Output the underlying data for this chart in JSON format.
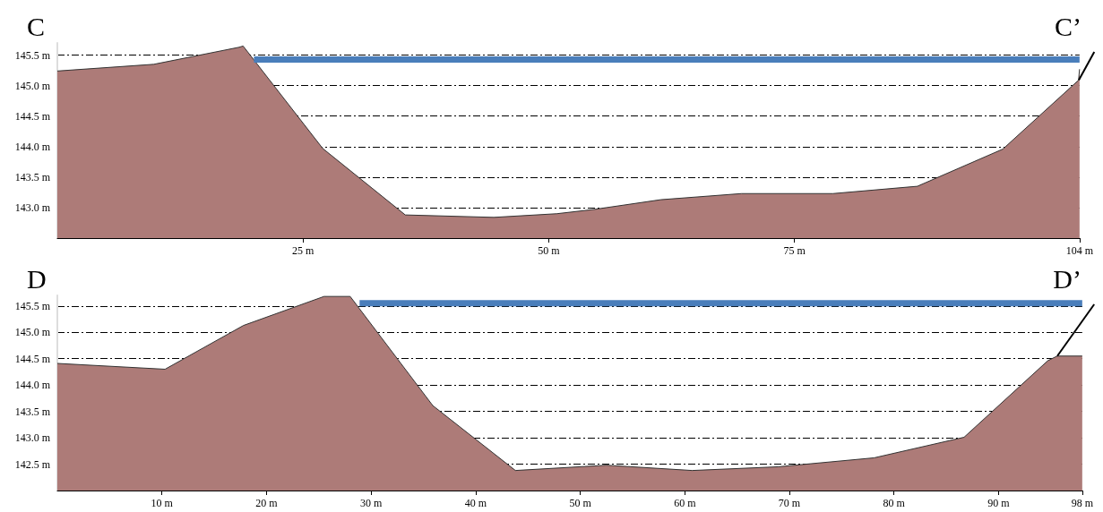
{
  "chart_data": [
    {
      "type": "area",
      "annotations": [
        "C",
        {
          "text": "C’",
          "x": 103.9,
          "y": 145.09
        }
      ],
      "xlim": [
        0,
        104
      ],
      "xticks": [
        {
          "value": 25,
          "label": "25 m"
        },
        {
          "value": 50,
          "label": "50 m"
        },
        {
          "value": 75,
          "label": "75 m"
        },
        {
          "value": 104,
          "label": "104 m"
        }
      ],
      "ylim": [
        142.5,
        145.7
      ],
      "yticks": [
        {
          "value": 143.0,
          "label": "143.0 m"
        },
        {
          "value": 143.5,
          "label": "143.5 m"
        },
        {
          "value": 144.0,
          "label": "144.0 m"
        },
        {
          "value": 144.5,
          "label": "144.5 m"
        },
        {
          "value": 145.0,
          "label": "145.0 m"
        },
        {
          "value": 145.5,
          "label": "145.5 m"
        }
      ],
      "grid": "y",
      "series": [
        {
          "color": "#ad7b78",
          "x": [
            0,
            9.8,
            18.5,
            18.9,
            27,
            35.4,
            44.4,
            50.8,
            54.6,
            61.4,
            69.6,
            78.9,
            87.5,
            96.2,
            103.9,
            104
          ],
          "values": [
            145.24,
            145.35,
            145.63,
            145.65,
            143.97,
            142.88,
            142.84,
            142.9,
            142.97,
            143.13,
            143.23,
            143.23,
            143.35,
            143.96,
            145.09,
            145.27
          ]
        },
        {
          "type": "line",
          "color": "#4a7ebb",
          "x": [
            20,
            104
          ],
          "values": [
            145.43,
            145.43
          ]
        }
      ]
    },
    {
      "type": "area",
      "annotations": [
        "D",
        {
          "text": "D’",
          "x": 95.6,
          "y": 144.55
        }
      ],
      "xlim": [
        0,
        98
      ],
      "xticks": [
        {
          "value": 10,
          "label": "10 m"
        },
        {
          "value": 20,
          "label": "20 m"
        },
        {
          "value": 30,
          "label": "30 m"
        },
        {
          "value": 40,
          "label": "40 m"
        },
        {
          "value": 50,
          "label": "50 m"
        },
        {
          "value": 60,
          "label": "60 m"
        },
        {
          "value": 70,
          "label": "70 m"
        },
        {
          "value": 80,
          "label": "80 m"
        },
        {
          "value": 90,
          "label": "90 m"
        },
        {
          "value": 98,
          "label": "98 m"
        }
      ],
      "ylim": [
        142.0,
        145.7
      ],
      "yticks": [
        {
          "value": 142.5,
          "label": "142.5 m"
        },
        {
          "value": 143.0,
          "label": "143.0 m"
        },
        {
          "value": 143.5,
          "label": "143.5 m"
        },
        {
          "value": 144.0,
          "label": "144.0 m"
        },
        {
          "value": 144.5,
          "label": "144.5 m"
        },
        {
          "value": 145.0,
          "label": "145.0 m"
        },
        {
          "value": 145.5,
          "label": "145.5 m"
        }
      ],
      "grid": "y",
      "series": [
        {
          "color": "#ad7b78",
          "x": [
            0,
            10.3,
            17.8,
            25.5,
            28,
            35.9,
            43.8,
            52.5,
            60.7,
            68.9,
            78.1,
            86.7,
            94.7,
            95.6,
            98
          ],
          "values": [
            144.41,
            144.3,
            145.13,
            145.68,
            145.68,
            143.61,
            142.38,
            142.48,
            142.38,
            142.45,
            142.62,
            143.01,
            144.46,
            144.55,
            144.55
          ]
        },
        {
          "type": "line",
          "color": "#4a7ebb",
          "x": [
            28.9,
            98
          ],
          "values": [
            145.55,
            145.55
          ]
        }
      ]
    }
  ]
}
